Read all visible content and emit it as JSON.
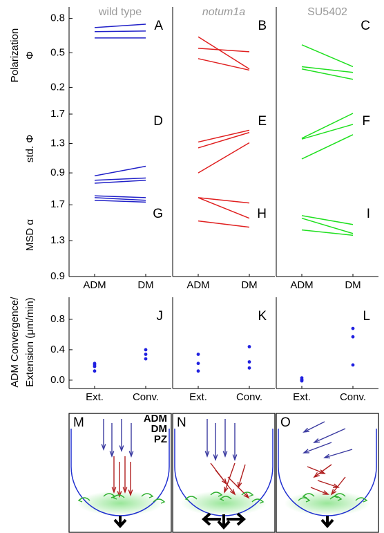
{
  "chart_data": [
    {
      "type": "line",
      "title": "wild type",
      "label": "A",
      "ylabel": [
        "Polarization",
        "Φ"
      ],
      "ylim": [
        0.07,
        0.9
      ],
      "yticks": [
        0.2,
        0.5,
        0.8
      ],
      "series": [
        {
          "color": "#2020c8",
          "values": [
            0.72,
            0.75
          ]
        },
        {
          "color": "#2020c8",
          "values": [
            0.685,
            0.69
          ]
        },
        {
          "color": "#2020c8",
          "values": [
            0.63,
            0.63
          ]
        }
      ]
    },
    {
      "type": "line",
      "title": "notum1a",
      "label": "B",
      "ylim": [
        0.07,
        0.9
      ],
      "series": [
        {
          "color": "#e02020",
          "values": [
            0.64,
            0.36
          ]
        },
        {
          "color": "#e02020",
          "values": [
            0.54,
            0.51
          ]
        },
        {
          "color": "#e02020",
          "values": [
            0.45,
            0.35
          ]
        }
      ]
    },
    {
      "type": "line",
      "title": "SU5402",
      "label": "C",
      "ylim": [
        0.07,
        0.9
      ],
      "series": [
        {
          "color": "#20e020",
          "values": [
            0.57,
            0.38
          ]
        },
        {
          "color": "#20e020",
          "values": [
            0.38,
            0.33
          ]
        },
        {
          "color": "#20e020",
          "values": [
            0.36,
            0.27
          ]
        }
      ]
    },
    {
      "type": "line",
      "label": "D",
      "ylabel": [
        "std. Φ"
      ],
      "ylim": [
        0.6,
        1.86
      ],
      "yticks": [
        0.9,
        1.3,
        1.7
      ],
      "series": [
        {
          "color": "#2020c8",
          "values": [
            0.86,
            0.99
          ]
        },
        {
          "color": "#2020c8",
          "values": [
            0.8,
            0.83
          ]
        },
        {
          "color": "#2020c8",
          "values": [
            0.76,
            0.8
          ]
        }
      ]
    },
    {
      "type": "line",
      "label": "E",
      "ylim": [
        0.6,
        1.86
      ],
      "series": [
        {
          "color": "#e02020",
          "values": [
            1.32,
            1.48
          ]
        },
        {
          "color": "#e02020",
          "values": [
            1.24,
            1.45
          ]
        },
        {
          "color": "#e02020",
          "values": [
            0.9,
            1.31
          ]
        }
      ]
    },
    {
      "type": "line",
      "label": "F",
      "ylim": [
        0.6,
        1.86
      ],
      "series": [
        {
          "color": "#20e020",
          "values": [
            1.37,
            1.71
          ]
        },
        {
          "color": "#20e020",
          "values": [
            1.36,
            1.56
          ]
        },
        {
          "color": "#20e020",
          "values": [
            1.09,
            1.42
          ]
        }
      ]
    },
    {
      "type": "line",
      "label": "G",
      "ylabel": [
        "MSD α"
      ],
      "ylim": [
        0.9,
        1.81
      ],
      "yticks": [
        0.9,
        1.3,
        1.7
      ],
      "categories": [
        "ADM",
        "DM"
      ],
      "series": [
        {
          "color": "#2020c8",
          "values": [
            1.8,
            1.78
          ]
        },
        {
          "color": "#2020c8",
          "values": [
            1.78,
            1.75
          ]
        },
        {
          "color": "#2020c8",
          "values": [
            1.75,
            1.73
          ]
        }
      ]
    },
    {
      "type": "line",
      "label": "H",
      "ylim": [
        0.9,
        1.81
      ],
      "categories": [
        "ADM",
        "DM"
      ],
      "series": [
        {
          "color": "#e02020",
          "values": [
            1.78,
            1.72
          ]
        },
        {
          "color": "#e02020",
          "values": [
            1.78,
            1.55
          ]
        },
        {
          "color": "#e02020",
          "values": [
            1.52,
            1.45
          ]
        }
      ]
    },
    {
      "type": "line",
      "label": "I",
      "ylim": [
        0.9,
        1.81
      ],
      "categories": [
        "ADM",
        "DM"
      ],
      "series": [
        {
          "color": "#20e020",
          "values": [
            1.58,
            1.48
          ]
        },
        {
          "color": "#20e020",
          "values": [
            1.55,
            1.38
          ]
        },
        {
          "color": "#20e020",
          "values": [
            1.42,
            1.36
          ]
        }
      ]
    },
    {
      "type": "strip",
      "label": "J",
      "ylabel": [
        "ADM Convergence/",
        "Extension (μm/min)"
      ],
      "ylim": [
        -0.11,
        1.09
      ],
      "yticks": [
        {
          "value": 0,
          "label": "0.0"
        },
        0.4,
        0.8
      ],
      "categories": [
        "Ext.",
        "Conv."
      ],
      "color": "#2020e0",
      "values": [
        [
          0.22,
          0.2,
          0.18,
          0.12
        ],
        [
          0.4,
          0.34,
          0.28
        ]
      ]
    },
    {
      "type": "strip",
      "label": "K",
      "ylim": [
        -0.11,
        1.09
      ],
      "categories": [
        "Ext.",
        "Conv."
      ],
      "color": "#2020e0",
      "values": [
        [
          0.34,
          0.22,
          0.12
        ],
        [
          0.44,
          0.24,
          0.16
        ]
      ]
    },
    {
      "type": "strip",
      "label": "L",
      "ylim": [
        -0.11,
        1.09
      ],
      "categories": [
        "Ext.",
        "Conv."
      ],
      "color": "#2020e0",
      "values": [
        [
          0.03,
          0.01,
          0.0,
          -0.01
        ],
        [
          0.68,
          0.57,
          0.2
        ]
      ]
    }
  ],
  "diagrams": [
    {
      "label": "M",
      "legend": [
        {
          "text": "ADM",
          "color": "#3040a0"
        },
        {
          "text": "DM",
          "color": "#c02020"
        },
        {
          "text": "PZ",
          "color": "#30c030"
        }
      ]
    },
    {
      "label": "N"
    },
    {
      "label": "O"
    }
  ]
}
